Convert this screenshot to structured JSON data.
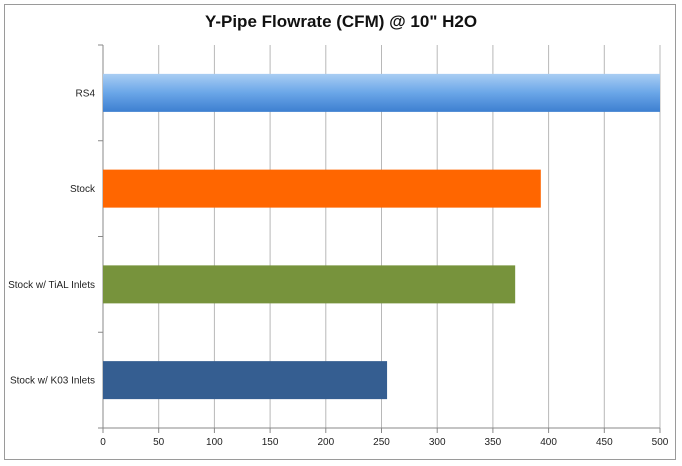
{
  "chart_data": {
    "type": "bar",
    "orientation": "horizontal",
    "title": "Y-Pipe Flowrate (CFM) @ 10\" H2O",
    "xlabel": "",
    "ylabel": "",
    "categories": [
      "RS4",
      "Stock",
      "Stock w/ TiAL Inlets",
      "Stock w/ K03 Inlets"
    ],
    "values": [
      500,
      393,
      370,
      255
    ],
    "colors": [
      "#5b9bd5",
      "#ff6600",
      "#77933c",
      "#355e91"
    ],
    "xlim": [
      0,
      500
    ],
    "xticks": [
      "0",
      "50",
      "100",
      "150",
      "200",
      "250",
      "300",
      "350",
      "400",
      "450",
      "500"
    ],
    "grid": true,
    "legend": "none"
  }
}
